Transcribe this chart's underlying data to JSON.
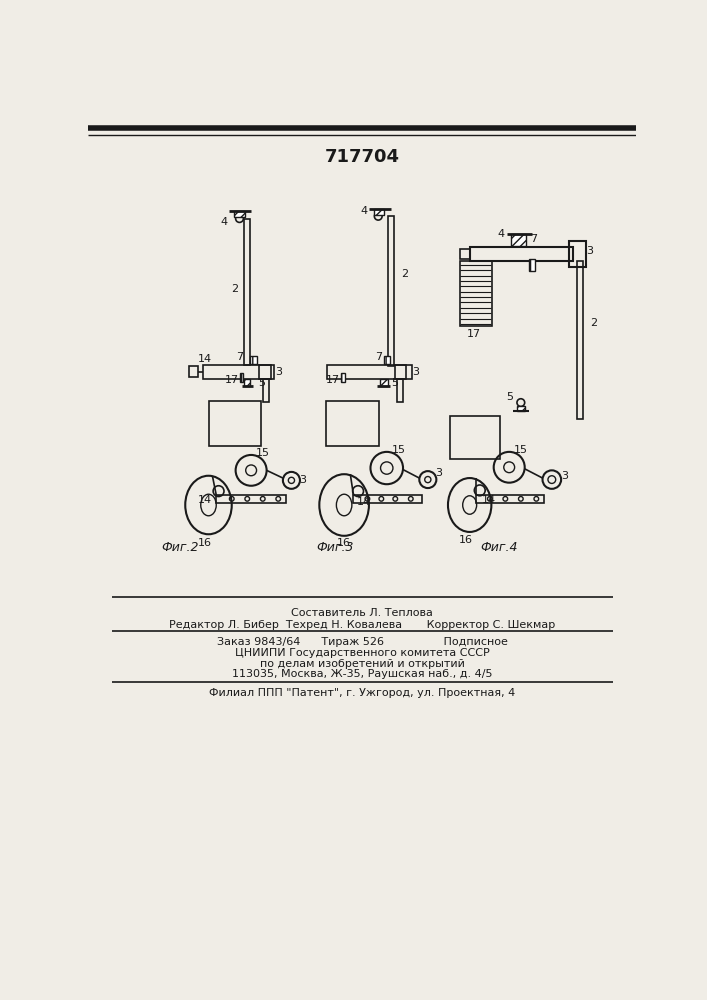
{
  "patent_number": "717704",
  "bg_color": "#f0ede6",
  "line_color": "#1a1a1a",
  "footer_lines": [
    "Составитель Л. Теплова",
    "Редактор Л. Бибер  Техред Н. Ковалева       Корректор С. Шекмар",
    "Заказ 9843/64      Тираж 526                 Подписное",
    "ЦНИИПИ Государственного комитета СССР",
    "по делам изобретений и открытий",
    "113035, Москва, Ж-35, Раушская наб., д. 4/5",
    "Филиал ППП \"Патент\", г. Ужгород, ул. Проектная, 4"
  ],
  "fig_labels": [
    "Фиг.2",
    "Фиг.3",
    "Фиг.4"
  ]
}
